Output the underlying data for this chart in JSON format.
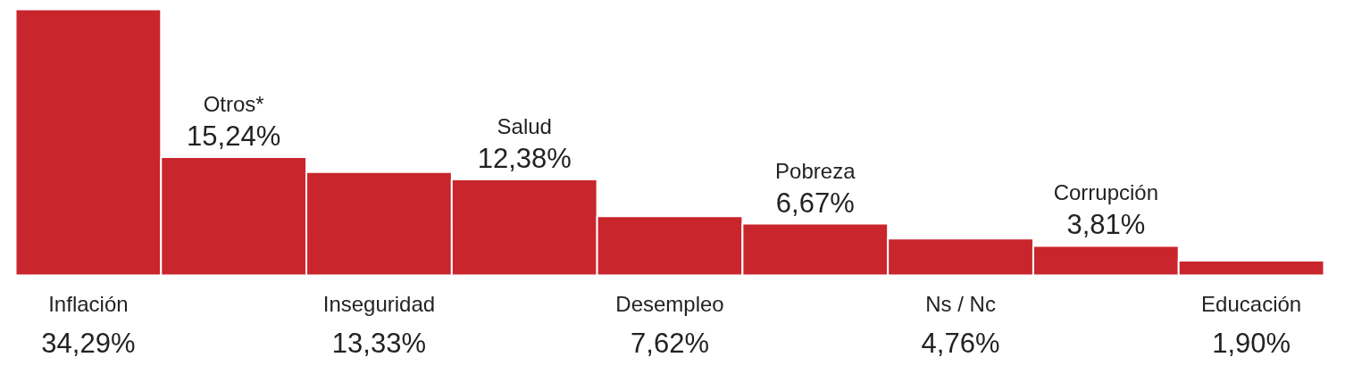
{
  "chart_data": {
    "type": "bar",
    "categories": [
      "Inflación",
      "Otros*",
      "Inseguridad",
      "Salud",
      "Desempleo",
      "Pobreza",
      "Ns / Nc",
      "Corrupción",
      "Educación"
    ],
    "values": [
      34.29,
      15.24,
      13.33,
      12.38,
      7.62,
      6.67,
      4.76,
      3.81,
      1.9
    ],
    "value_labels": [
      "34,29%",
      "15,24%",
      "13,33%",
      "12,38%",
      "7,62%",
      "6,67%",
      "4,76%",
      "3,81%",
      "1,90%"
    ],
    "color": "#c9252c"
  }
}
